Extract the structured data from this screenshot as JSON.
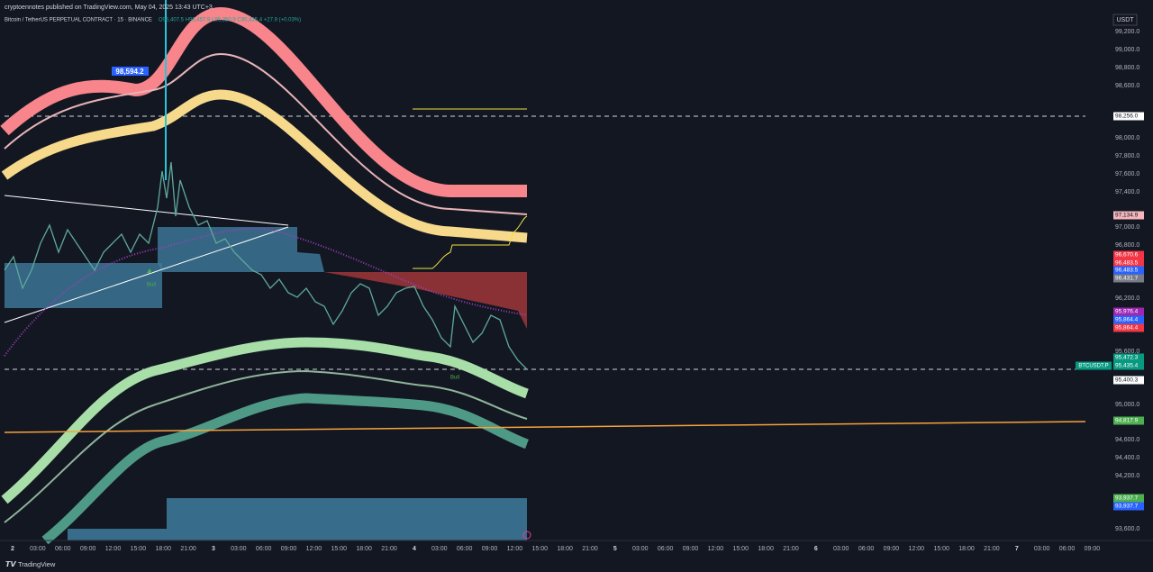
{
  "header": {
    "publisher": "cryptoennotes published on TradingView.com, May 04, 2025 13:43 UTC+3",
    "symbol": "Bitcoin / TetherUS PERPETUAL CONTRACT · 15 · BINANCE",
    "ohlc": "O95,407.5 H95,457.9 L95,350.9 C95,435.4 +27.9 (+0.03%)"
  },
  "price_axis": {
    "currency": "USDT",
    "labels": [
      "99,200.0",
      "99,000.0",
      "98,800.0",
      "98,600.0",
      "98,000.0",
      "97,800.0",
      "97,600.0",
      "97,400.0",
      "97,000.0",
      "96,800.0",
      "96,200.0",
      "95,600.0",
      "95,000.0",
      "94,600.0",
      "94,400.0",
      "94,200.0",
      "93,600.0"
    ]
  },
  "price_tags": [
    "98,256.0",
    "97,134.9",
    "96,670.6",
    "96,483.5",
    "96,483.5",
    "96,431.7",
    "95,976.4",
    "95,864.4",
    "95,864.4",
    "95,472.3",
    "95,435.4",
    "95,400.3",
    "94,817.9",
    "93,937.7",
    "93,937.7"
  ],
  "symbol_tag": "BTCUSDT.P",
  "time_axis": {
    "labels": [
      "2",
      "03:00",
      "06:00",
      "09:00",
      "12:00",
      "15:00",
      "18:00",
      "21:00",
      "3",
      "03:00",
      "06:00",
      "09:00",
      "12:00",
      "15:00",
      "18:00",
      "21:00",
      "4",
      "03:00",
      "06:00",
      "09:00",
      "12:00",
      "15:00",
      "18:00",
      "21:00",
      "5",
      "03:00",
      "06:00",
      "09:00",
      "12:00",
      "15:00",
      "18:00",
      "21:00",
      "6",
      "03:00",
      "06:00",
      "09:00",
      "12:00",
      "15:00",
      "18:00",
      "21:00",
      "7",
      "03:00",
      "06:00",
      "09:00"
    ]
  },
  "annotations": {
    "callout": "98,594.2",
    "signals": [
      "Bull",
      "Bull"
    ]
  },
  "footer": {
    "brand": "TradingView"
  }
}
